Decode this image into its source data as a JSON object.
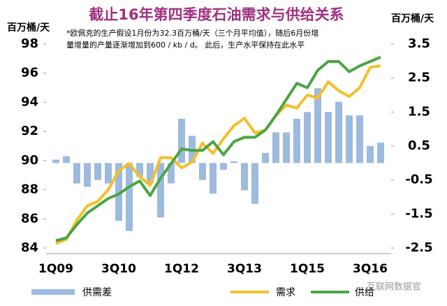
{
  "chart_data": {
    "type": "combo",
    "title": "截止16年第四季度石油需求与供给关系",
    "note_lines": [
      "*欧佩克的生产假设1月份为32.3百万桶/天（三个月平均值），随后6月份增",
      "量增量的产量逐渐增加到600 / kb / d。 此后，生产水平保持在此水平"
    ],
    "ylabel": "百万桶/天",
    "y2label": "百万桶/天",
    "watermark": "互联网数据官",
    "categories": [
      "1Q09",
      null,
      null,
      null,
      null,
      null,
      "3Q10",
      null,
      null,
      null,
      null,
      null,
      "1Q12",
      null,
      null,
      null,
      null,
      null,
      "3Q13",
      null,
      null,
      null,
      null,
      null,
      "1Q15",
      null,
      null,
      null,
      null,
      null,
      "3Q16",
      null
    ],
    "ylim": [
      84,
      98
    ],
    "yticks": [
      84,
      86,
      88,
      90,
      92,
      94,
      96,
      98
    ],
    "y2lim": [
      -2.5,
      3.5
    ],
    "y2ticks": [
      3.5,
      2.5,
      1.5,
      0.5,
      -0.5,
      -1.5,
      -2.5
    ],
    "series": [
      {
        "name": "供需差",
        "type": "bar",
        "axis": "y2",
        "color": "#9dbadf",
        "values": [
          0.1,
          0.2,
          -0.6,
          -0.7,
          -0.5,
          -0.6,
          -1.7,
          -2.0,
          -0.4,
          -0.6,
          -1.6,
          -0.6,
          1.3,
          0.8,
          -0.5,
          -0.9,
          -0.2,
          0.05,
          -0.8,
          -1.2,
          0.3,
          0.9,
          0.9,
          1.3,
          1.5,
          2.2,
          1.5,
          1.8,
          1.4,
          1.4,
          0.5,
          0.6
        ]
      },
      {
        "name": "需求",
        "type": "line",
        "color": "#f5be2a",
        "values": [
          84.3,
          84.6,
          85.9,
          86.9,
          87.2,
          88.0,
          89.3,
          89.8,
          88.9,
          88.3,
          90.2,
          90.2,
          89.5,
          89.9,
          91.2,
          90.5,
          91.5,
          92.4,
          92.9,
          91.9,
          92.1,
          93.1,
          93.8,
          93.6,
          94.5,
          94.3,
          95.4,
          94.8,
          94.4,
          95.0,
          96.4,
          96.5
        ]
      },
      {
        "name": "供给",
        "type": "line",
        "color": "#4aa544",
        "values": [
          84.5,
          84.7,
          85.6,
          86.4,
          86.9,
          87.4,
          87.7,
          88.2,
          88.6,
          87.6,
          88.8,
          89.8,
          90.8,
          90.7,
          90.7,
          91.3,
          90.4,
          91.3,
          91.6,
          91.6,
          92.1,
          93.1,
          94.2,
          95.3,
          95.0,
          96.2,
          96.8,
          96.8,
          96.1,
          96.5,
          96.8,
          97.1
        ]
      }
    ]
  }
}
